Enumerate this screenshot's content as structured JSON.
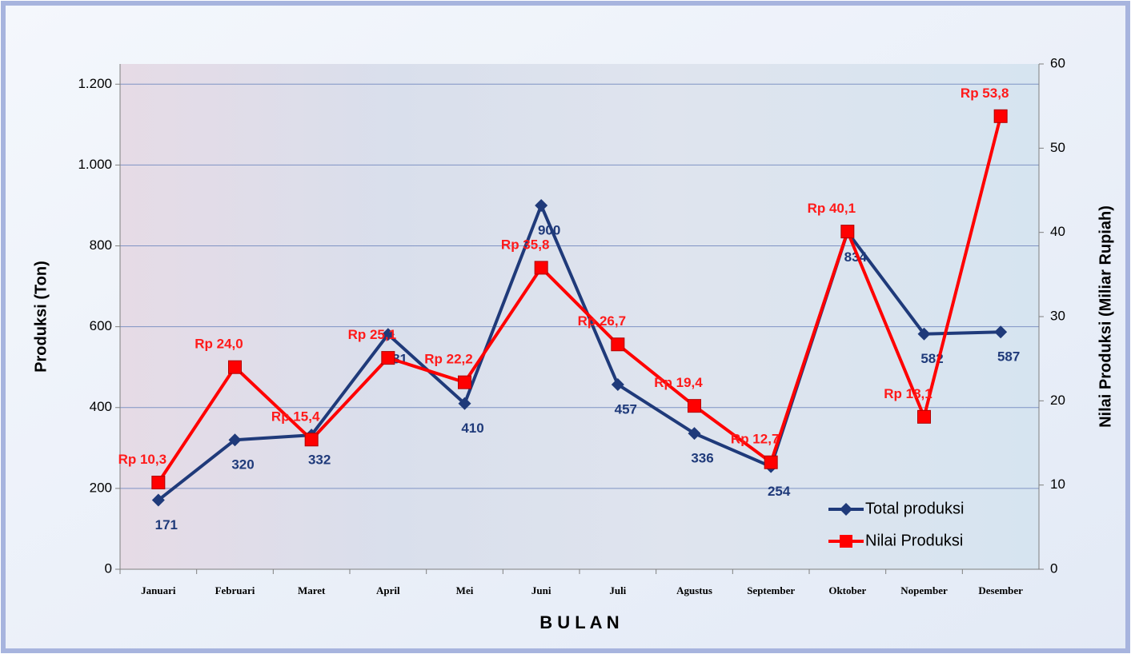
{
  "chart_data": {
    "type": "line",
    "x_label": "B U L A N",
    "y_label": "Produksi (Ton)",
    "y2_label": "Nilai Produksi  (Miliar  Rupiah)",
    "categories": [
      "Januari",
      "Februari",
      "Maret",
      "April",
      "Mei",
      "Juni",
      "Juli",
      "Agustus",
      "September",
      "Oktober",
      "Nopember",
      "Desember"
    ],
    "series": [
      {
        "name": "Total produksi",
        "color": "#1f3a7a",
        "marker": "diamond",
        "axis": "y",
        "values": [
          171,
          320,
          332,
          581,
          410,
          900,
          457,
          336,
          254,
          834,
          582,
          587
        ]
      },
      {
        "name": "Nilai Produksi",
        "color": "#ff0000",
        "marker": "square",
        "axis": "y2",
        "values": [
          10.3,
          24.0,
          15.4,
          25.1,
          22.2,
          35.8,
          26.7,
          19.4,
          12.7,
          40.1,
          18.1,
          53.8
        ],
        "value_labels": [
          "Rp 10,3",
          "Rp 24,0",
          "Rp 15,4",
          "Rp 25,1",
          "Rp 22,2",
          "Rp 35,8",
          "Rp 26,7",
          "Rp 19,4",
          "Rp 12,7",
          "Rp 40,1",
          "Rp 18,1",
          "Rp 53,8"
        ]
      }
    ],
    "ylim": [
      0,
      1250
    ],
    "yticks": [
      0,
      200,
      400,
      600,
      800,
      {
        "value": 1000,
        "label": "1.000"
      },
      {
        "value": 1200,
        "label": "1.200"
      }
    ],
    "y2lim": [
      0,
      60
    ],
    "y2ticks": [
      0,
      10,
      20,
      30,
      40,
      50,
      60
    ],
    "grid": true,
    "legend": "lower right"
  }
}
